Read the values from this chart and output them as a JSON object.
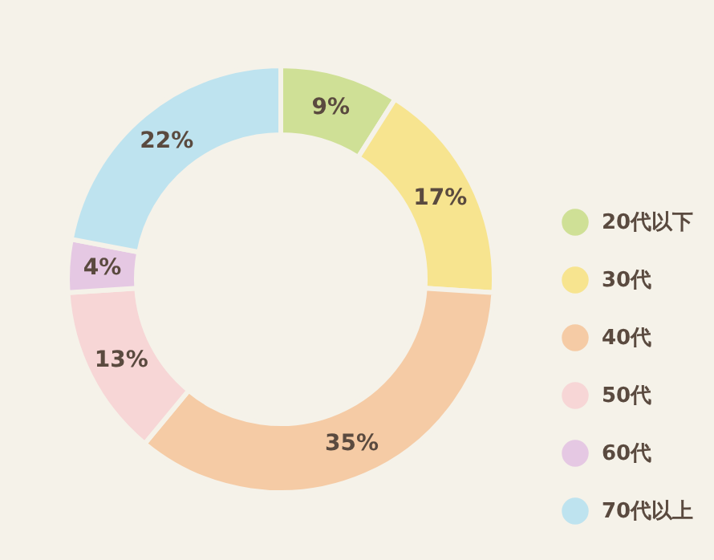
{
  "chart_data": {
    "type": "donut",
    "categories": [
      "20代以下",
      "30代",
      "40代",
      "50代",
      "60代",
      "70代以上"
    ],
    "values": [
      9,
      17,
      35,
      13,
      4,
      22
    ],
    "colors": [
      "#cfe096",
      "#f7e48f",
      "#f5cba5",
      "#f7d6d6",
      "#e5c8e3",
      "#bee3ef"
    ],
    "value_labels": [
      "9%",
      "17%",
      "35%",
      "13%",
      "4%",
      "22%"
    ],
    "legend": "right"
  }
}
